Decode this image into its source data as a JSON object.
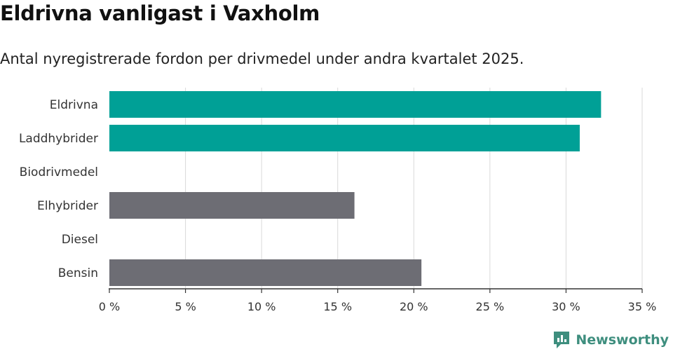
{
  "title": "Eldrivna vanligast i Vaxholm",
  "subtitle": "Antal nyregistrerade fordon per drivmedel under andra kvartalet 2025.",
  "brand": "Newsworthy",
  "colors": {
    "highlight": "#00a096",
    "other": "#6d6d74",
    "grid": "#d9d9d9",
    "axis": "#333333",
    "brand": "#3e8e7e"
  },
  "chart_data": {
    "type": "bar",
    "orientation": "horizontal",
    "categories": [
      "Eldrivna",
      "Laddhybrider",
      "Biodrivmedel",
      "Elhybrider",
      "Diesel",
      "Bensin"
    ],
    "values": [
      32.3,
      30.9,
      0,
      16.1,
      0,
      20.5
    ],
    "highlighted": [
      "Eldrivna",
      "Laddhybrider"
    ],
    "xlim": [
      0,
      35
    ],
    "ticks": [
      0,
      5,
      10,
      15,
      20,
      25,
      30,
      35
    ],
    "tick_labels": [
      "0 %",
      "5 %",
      "10 %",
      "15 %",
      "20 %",
      "25 %",
      "30 %",
      "35 %"
    ],
    "grid": true,
    "xlabel": "",
    "ylabel": ""
  }
}
